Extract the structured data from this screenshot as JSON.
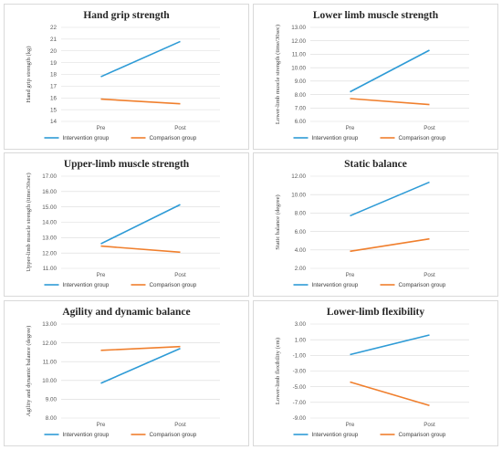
{
  "chart_data": [
    {
      "type": "line",
      "title": "Hand grip strength",
      "ylabel": "Hand grip strength (kg)",
      "categories": [
        "Pre",
        "Post"
      ],
      "yticks": [
        "14",
        "15",
        "16",
        "17",
        "18",
        "19",
        "20",
        "21",
        "22"
      ],
      "ylim": [
        14,
        22
      ],
      "series": [
        {
          "name": "Intervention group",
          "values": [
            17.8,
            20.8
          ],
          "color": "#2e9bd6"
        },
        {
          "name": "Comparison group",
          "values": [
            15.9,
            15.5
          ],
          "color": "#f07f2d"
        }
      ]
    },
    {
      "type": "line",
      "title": "Lower limb muscle strength",
      "ylabel": "Lower-limb muscle strength (time/30sec)",
      "categories": [
        "Pre",
        "Post"
      ],
      "yticks": [
        "6.00",
        "7.00",
        "8.00",
        "9.00",
        "10.00",
        "11.00",
        "12.00",
        "13.00"
      ],
      "ylim": [
        6,
        13
      ],
      "series": [
        {
          "name": "Intervention group",
          "values": [
            8.2,
            11.3
          ],
          "color": "#2e9bd6"
        },
        {
          "name": "Comparison group",
          "values": [
            7.7,
            7.25
          ],
          "color": "#f07f2d"
        }
      ]
    },
    {
      "type": "line",
      "title": "Upper-limb muscle strength",
      "ylabel": "Upper-limb muscle strength (time/30sec)",
      "categories": [
        "Pre",
        "Post"
      ],
      "yticks": [
        "11.00",
        "12.00",
        "13.00",
        "14.00",
        "15.00",
        "16.00",
        "17.00"
      ],
      "ylim": [
        11,
        17
      ],
      "series": [
        {
          "name": "Intervention group",
          "values": [
            12.6,
            15.15
          ],
          "color": "#2e9bd6"
        },
        {
          "name": "Comparison group",
          "values": [
            12.45,
            12.05
          ],
          "color": "#f07f2d"
        }
      ]
    },
    {
      "type": "line",
      "title": "Static balance",
      "ylabel": "Static balance (degree)",
      "categories": [
        "Pre",
        "Post"
      ],
      "yticks": [
        "2.00",
        "4.00",
        "6.00",
        "8.00",
        "10.00",
        "12.00"
      ],
      "ylim": [
        2,
        12
      ],
      "series": [
        {
          "name": "Intervention group",
          "values": [
            7.7,
            11.35
          ],
          "color": "#2e9bd6"
        },
        {
          "name": "Comparison group",
          "values": [
            3.85,
            5.2
          ],
          "color": "#f07f2d"
        }
      ]
    },
    {
      "type": "line",
      "title": "Agility and dynamic balance",
      "ylabel": "Agility and dynamic balance (degree)",
      "categories": [
        "Pre",
        "Post"
      ],
      "yticks": [
        "8.00",
        "9.00",
        "10.00",
        "11.00",
        "12.00",
        "13.00"
      ],
      "ylim": [
        8,
        13
      ],
      "series": [
        {
          "name": "Intervention group",
          "values": [
            9.85,
            11.7
          ],
          "color": "#2e9bd6"
        },
        {
          "name": "Comparison group",
          "values": [
            11.6,
            11.8
          ],
          "color": "#f07f2d"
        }
      ]
    },
    {
      "type": "line",
      "title": "Lower-limb flexibility",
      "ylabel": "Lower-limb flexibility (cm)",
      "categories": [
        "Pre",
        "Post"
      ],
      "yticks": [
        "-9.00",
        "-7.00",
        "-5.00",
        "-3.00",
        "-1.00",
        "1.00",
        "3.00"
      ],
      "ylim": [
        -9,
        3
      ],
      "series": [
        {
          "name": "Intervention group",
          "values": [
            -0.9,
            1.6
          ],
          "color": "#2e9bd6"
        },
        {
          "name": "Comparison group",
          "values": [
            -4.4,
            -7.4
          ],
          "color": "#f07f2d"
        }
      ]
    }
  ]
}
